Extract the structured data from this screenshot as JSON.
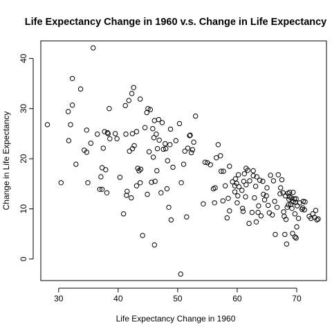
{
  "chart_data": {
    "type": "scatter",
    "title": "Life Expectancy Change in 1960 v.s. Change in Life Expectancy",
    "xlabel": "Life Expectancy Change in 1960",
    "ylabel": "Change in Life Expectancy",
    "xlim": [
      27,
      75
    ],
    "ylim": [
      -4.3,
      43.5
    ],
    "x_ticks": [
      30,
      40,
      50,
      60,
      70
    ],
    "y_ticks": [
      0,
      10,
      20,
      30,
      40
    ],
    "grid": false,
    "legend": "none",
    "marker": "open-circle",
    "points": [
      [
        28.1,
        26.8
      ],
      [
        30.4,
        15.2
      ],
      [
        31.6,
        29.4
      ],
      [
        31.7,
        23.6
      ],
      [
        32.0,
        26.8
      ],
      [
        32.3,
        30.7
      ],
      [
        32.3,
        36.0
      ],
      [
        32.9,
        18.9
      ],
      [
        33.7,
        33.9
      ],
      [
        34.3,
        21.7
      ],
      [
        34.7,
        25.7
      ],
      [
        34.7,
        21.3
      ],
      [
        34.9,
        15.2
      ],
      [
        35.4,
        23.1
      ],
      [
        35.8,
        42.1
      ],
      [
        36.5,
        24.9
      ],
      [
        36.9,
        13.9
      ],
      [
        37.1,
        16.4
      ],
      [
        37.3,
        13.9
      ],
      [
        37.3,
        18.2
      ],
      [
        37.5,
        22.1
      ],
      [
        37.7,
        25.4
      ],
      [
        37.9,
        17.8
      ],
      [
        38.1,
        13.2
      ],
      [
        38.2,
        25.2
      ],
      [
        38.3,
        25.0
      ],
      [
        38.5,
        30.0
      ],
      [
        38.6,
        24.0
      ],
      [
        39.5,
        25.0
      ],
      [
        39.8,
        24.0
      ],
      [
        40.3,
        16.3
      ],
      [
        40.9,
        9.0
      ],
      [
        41.2,
        30.6
      ],
      [
        41.3,
        24.9
      ],
      [
        41.4,
        12.7
      ],
      [
        41.5,
        13.5
      ],
      [
        41.8,
        31.6
      ],
      [
        41.9,
        21.5
      ],
      [
        42.2,
        12.2
      ],
      [
        42.3,
        33.0
      ],
      [
        42.4,
        22.0
      ],
      [
        42.4,
        25.0
      ],
      [
        42.6,
        34.2
      ],
      [
        42.7,
        22.6
      ],
      [
        43.1,
        25.4
      ],
      [
        43.1,
        14.6
      ],
      [
        43.3,
        18.1
      ],
      [
        43.5,
        17.6
      ],
      [
        43.7,
        15.2
      ],
      [
        43.7,
        31.9
      ],
      [
        43.8,
        17.9
      ],
      [
        44.1,
        4.7
      ],
      [
        44.5,
        26.2
      ],
      [
        44.8,
        29.2
      ],
      [
        44.9,
        12.9
      ],
      [
        45.0,
        30.0
      ],
      [
        45.2,
        21.4
      ],
      [
        45.4,
        29.8
      ],
      [
        45.6,
        15.3
      ],
      [
        45.8,
        26.0
      ],
      [
        45.9,
        20.3
      ],
      [
        46.0,
        24.2
      ],
      [
        46.1,
        27.6
      ],
      [
        46.1,
        2.8
      ],
      [
        46.2,
        15.5
      ],
      [
        46.4,
        24.9
      ],
      [
        46.5,
        17.6
      ],
      [
        46.6,
        22.0
      ],
      [
        46.8,
        27.8
      ],
      [
        46.9,
        23.7
      ],
      [
        47.2,
        13.2
      ],
      [
        47.4,
        27.2
      ],
      [
        47.6,
        21.9
      ],
      [
        47.9,
        23.0
      ],
      [
        48.0,
        22.0
      ],
      [
        48.2,
        14.0
      ],
      [
        48.3,
        19.6
      ],
      [
        48.5,
        10.3
      ],
      [
        48.7,
        22.8
      ],
      [
        48.8,
        25.9
      ],
      [
        48.9,
        7.8
      ],
      [
        49.2,
        18.3
      ],
      [
        49.7,
        23.6
      ],
      [
        50.3,
        27.0
      ],
      [
        50.5,
        -3.0
      ],
      [
        50.6,
        15.2
      ],
      [
        51.0,
        18.9
      ],
      [
        51.2,
        21.5
      ],
      [
        51.5,
        8.4
      ],
      [
        51.7,
        22.1
      ],
      [
        52.0,
        24.6
      ],
      [
        52.1,
        24.7
      ],
      [
        52.3,
        21.2
      ],
      [
        52.5,
        21.8
      ],
      [
        52.7,
        23.3
      ],
      [
        53.0,
        28.5
      ],
      [
        54.3,
        11.0
      ],
      [
        54.6,
        19.3
      ],
      [
        55.0,
        19.2
      ],
      [
        55.5,
        18.8
      ],
      [
        56.0,
        14.0
      ],
      [
        56.2,
        11.2
      ],
      [
        56.3,
        14.2
      ],
      [
        56.5,
        20.2
      ],
      [
        56.8,
        22.8
      ],
      [
        57.2,
        20.6
      ],
      [
        57.3,
        17.5
      ],
      [
        57.6,
        11.6
      ],
      [
        57.7,
        17.5
      ],
      [
        58.0,
        14.6
      ],
      [
        58.3,
        8.2
      ],
      [
        58.5,
        12.1
      ],
      [
        58.7,
        18.5
      ],
      [
        58.7,
        9.6
      ],
      [
        59.2,
        15.4
      ],
      [
        59.6,
        13.4
      ],
      [
        59.6,
        14.6
      ],
      [
        59.7,
        16.0
      ],
      [
        59.9,
        15.1
      ],
      [
        60.0,
        11.2
      ],
      [
        60.1,
        12.6
      ],
      [
        60.2,
        16.8
      ],
      [
        60.3,
        14.4
      ],
      [
        60.8,
        13.7
      ],
      [
        60.9,
        10.1
      ],
      [
        61.1,
        15.5
      ],
      [
        61.2,
        17.0
      ],
      [
        61.4,
        12.4
      ],
      [
        61.5,
        14.8
      ],
      [
        61.5,
        18.1
      ],
      [
        61.8,
        17.7
      ],
      [
        62.0,
        7.1
      ],
      [
        62.1,
        15.6
      ],
      [
        62.5,
        9.3
      ],
      [
        62.7,
        17.6
      ],
      [
        62.7,
        16.6
      ],
      [
        62.9,
        12.2
      ],
      [
        63.1,
        14.5
      ],
      [
        63.3,
        16.4
      ],
      [
        63.5,
        9.3
      ],
      [
        63.6,
        10.6
      ],
      [
        63.8,
        15.7
      ],
      [
        64.0,
        8.6
      ],
      [
        64.3,
        15.5
      ],
      [
        64.4,
        12.9
      ],
      [
        64.6,
        11.8
      ],
      [
        65.0,
        14.2
      ],
      [
        65.2,
        10.7
      ],
      [
        65.4,
        9.2
      ],
      [
        65.6,
        16.7
      ],
      [
        65.9,
        8.8
      ],
      [
        66.1,
        15.6
      ],
      [
        66.3,
        11.5
      ],
      [
        66.4,
        4.9
      ],
      [
        66.9,
        16.8
      ],
      [
        67.3,
        14.2
      ],
      [
        67.5,
        15.8
      ],
      [
        67.7,
        13.2
      ],
      [
        67.8,
        9.4
      ],
      [
        67.9,
        8.5
      ],
      [
        68.0,
        4.9
      ],
      [
        68.1,
        12.6
      ],
      [
        68.2,
        7.9
      ],
      [
        68.3,
        3.0
      ],
      [
        68.4,
        10.3
      ],
      [
        68.5,
        13.1
      ],
      [
        68.7,
        11.9
      ],
      [
        68.8,
        13.3
      ],
      [
        68.8,
        12.4
      ],
      [
        69.0,
        10.9
      ],
      [
        69.1,
        12.2
      ],
      [
        69.2,
        10.1
      ],
      [
        69.4,
        13.3
      ],
      [
        69.4,
        11.4
      ],
      [
        69.6,
        12.0
      ],
      [
        69.7,
        9.0
      ],
      [
        69.7,
        4.4
      ],
      [
        69.8,
        11.3
      ],
      [
        69.9,
        12.0
      ],
      [
        69.9,
        4.2
      ],
      [
        70.1,
        10.6
      ],
      [
        70.3,
        8.1
      ],
      [
        70.5,
        11.2
      ],
      [
        70.9,
        9.9
      ],
      [
        71.1,
        11.5
      ],
      [
        71.3,
        9.8
      ],
      [
        71.4,
        11.4
      ],
      [
        72.1,
        8.5
      ],
      [
        72.7,
        9.0
      ],
      [
        73.0,
        8.3
      ],
      [
        73.2,
        9.7
      ],
      [
        73.4,
        7.8
      ],
      [
        73.6,
        8.0
      ],
      [
        70.0,
        6.4
      ],
      [
        69.3,
        5.1
      ],
      [
        72.4,
        8.1
      ],
      [
        68.6,
        10.8
      ],
      [
        66.7,
        10.3
      ],
      [
        61.0,
        9.5
      ],
      [
        64.9,
        12.6
      ],
      [
        63.2,
        7.4
      ],
      [
        71.0,
        10.2
      ],
      [
        67.2,
        13.0
      ]
    ]
  }
}
